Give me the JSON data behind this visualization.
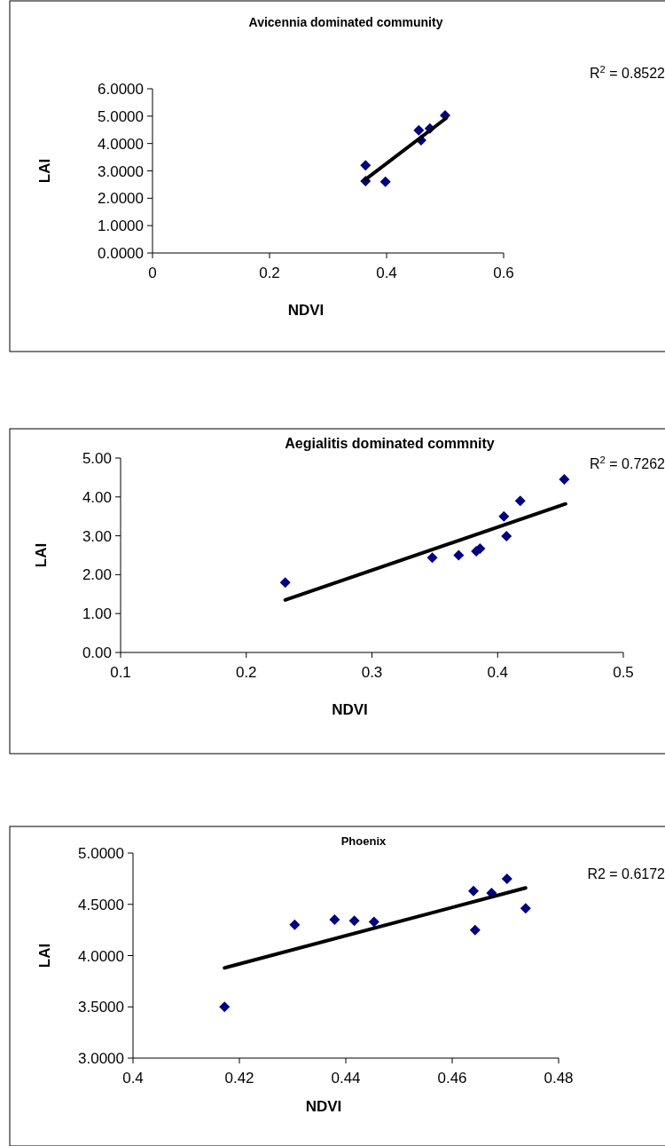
{
  "chart_data": [
    {
      "type": "scatter",
      "title": "Avicennia dominated community",
      "xlabel": "NDVI",
      "ylabel": "LAI",
      "marker": "diamond",
      "xlim": [
        0,
        0.6
      ],
      "xticks": [
        0,
        0.2,
        0.4,
        0.6
      ],
      "ylim": [
        0,
        6
      ],
      "yticks": [
        {
          "value": 0,
          "label": "0.0000"
        },
        {
          "value": 1,
          "label": "1.0000"
        },
        {
          "value": 2,
          "label": "2.0000"
        },
        {
          "value": 3,
          "label": "3.0000"
        },
        {
          "value": 4,
          "label": "4.0000"
        },
        {
          "value": 5,
          "label": "5.0000"
        },
        {
          "value": 6,
          "label": "6.0000"
        }
      ],
      "annotations": [
        "R$^{2}$ = 0.8522"
      ],
      "series": [
        {
          "type": "scatter",
          "color": "#000080",
          "x": [
            0.364,
            0.364,
            0.398,
            0.455,
            0.459,
            0.474,
            0.5
          ],
          "values": [
            3.2,
            2.63,
            2.6,
            4.48,
            4.12,
            4.55,
            5.03
          ]
        },
        {
          "type": "line",
          "color": "#000000",
          "marker": "none",
          "x": [
            0.364,
            0.502
          ],
          "values": [
            2.69,
            4.93
          ]
        }
      ]
    },
    {
      "type": "scatter",
      "title": "Aegialitis dominated commnity",
      "xlabel": "NDVI",
      "ylabel": "LAI",
      "marker": "diamond",
      "xlim": [
        0.1,
        0.5
      ],
      "xticks": [
        0.1,
        0.2,
        0.3,
        0.4,
        0.5
      ],
      "ylim": [
        0,
        5
      ],
      "yticks": [
        {
          "value": 0,
          "label": "0.00"
        },
        {
          "value": 1,
          "label": "1.00"
        },
        {
          "value": 2,
          "label": "2.00"
        },
        {
          "value": 3,
          "label": "3.00"
        },
        {
          "value": 4,
          "label": "4.00"
        },
        {
          "value": 5,
          "label": "5.00"
        }
      ],
      "annotations": [
        "R$^{2}$ = 0.7262"
      ],
      "series": [
        {
          "type": "scatter",
          "color": "#000080",
          "x": [
            0.231,
            0.348,
            0.369,
            0.383,
            0.386,
            0.405,
            0.407,
            0.418,
            0.453
          ],
          "values": [
            1.8,
            2.44,
            2.5,
            2.6,
            2.67,
            3.5,
            2.99,
            3.9,
            4.45
          ]
        },
        {
          "type": "line",
          "color": "#000000",
          "marker": "none",
          "x": [
            0.231,
            0.454
          ],
          "values": [
            1.35,
            3.82
          ]
        }
      ]
    },
    {
      "type": "scatter",
      "title": "Phoenix",
      "xlabel": "NDVI",
      "ylabel": "LAI",
      "marker": "diamond",
      "xlim": [
        0.4,
        0.48
      ],
      "xticks": [
        0.4,
        0.42,
        0.44,
        0.46,
        0.48
      ],
      "ylim": [
        3,
        5
      ],
      "yticks": [
        {
          "value": 3,
          "label": "3.0000"
        },
        {
          "value": 3.5,
          "label": "3.5000"
        },
        {
          "value": 4,
          "label": "4.0000"
        },
        {
          "value": 4.5,
          "label": "4.5000"
        },
        {
          "value": 5,
          "label": "5.0000"
        }
      ],
      "annotations": [
        "R2 = 0.6172"
      ],
      "series": [
        {
          "type": "scatter",
          "color": "#000080",
          "x": [
            0.4172,
            0.4304,
            0.4379,
            0.4416,
            0.4453,
            0.464,
            0.4643,
            0.4674,
            0.4703,
            0.4738
          ],
          "values": [
            3.5,
            4.3,
            4.35,
            4.34,
            4.33,
            4.63,
            4.25,
            4.61,
            4.75,
            4.46
          ]
        },
        {
          "type": "line",
          "color": "#000000",
          "marker": "none",
          "x": [
            0.4172,
            0.4738
          ],
          "values": [
            3.88,
            4.66
          ]
        }
      ]
    }
  ]
}
